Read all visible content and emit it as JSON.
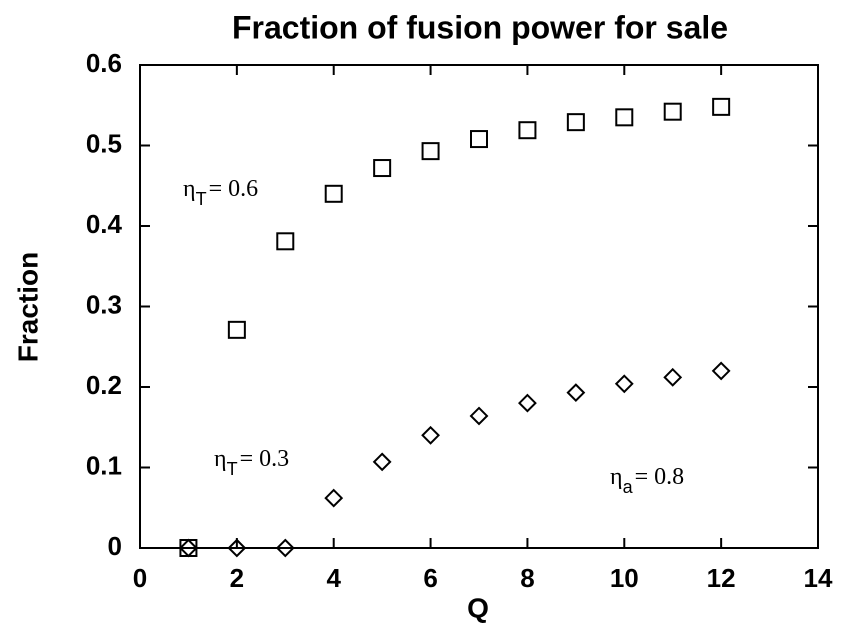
{
  "chart_data": {
    "type": "scatter",
    "title": "Fraction of fusion power for sale",
    "xlabel": "Q",
    "ylabel": "Fraction",
    "xlim": [
      0,
      14
    ],
    "xticks": [
      0,
      2,
      4,
      6,
      8,
      10,
      12,
      14
    ],
    "ylim": [
      0,
      0.6
    ],
    "yticks": [
      0,
      0.1,
      0.2,
      0.3,
      0.4,
      0.5,
      0.6
    ],
    "grid": false,
    "series": [
      {
        "marker": "square",
        "color": "#000000",
        "x": [
          1,
          2,
          3,
          4,
          5,
          6,
          7,
          8,
          9,
          10,
          11,
          12
        ],
        "values": [
          0,
          0.271,
          0.381,
          0.44,
          0.472,
          0.493,
          0.508,
          0.519,
          0.529,
          0.535,
          0.542,
          0.548
        ]
      },
      {
        "marker": "diamond",
        "color": "#000000",
        "x": [
          1,
          2,
          3,
          4,
          5,
          6,
          7,
          8,
          9,
          10,
          11,
          12
        ],
        "values": [
          0,
          0,
          0,
          0.062,
          0.107,
          0.14,
          0.164,
          0.18,
          0.193,
          0.204,
          0.212,
          0.22
        ]
      }
    ],
    "annotations": [
      {
        "symbol": "η",
        "sub": "T",
        "text": "= 0.6"
      },
      {
        "symbol": "η",
        "sub": "T",
        "text": "= 0.3"
      },
      {
        "symbol": "η",
        "sub": "a",
        "text": "= 0.8"
      }
    ]
  }
}
